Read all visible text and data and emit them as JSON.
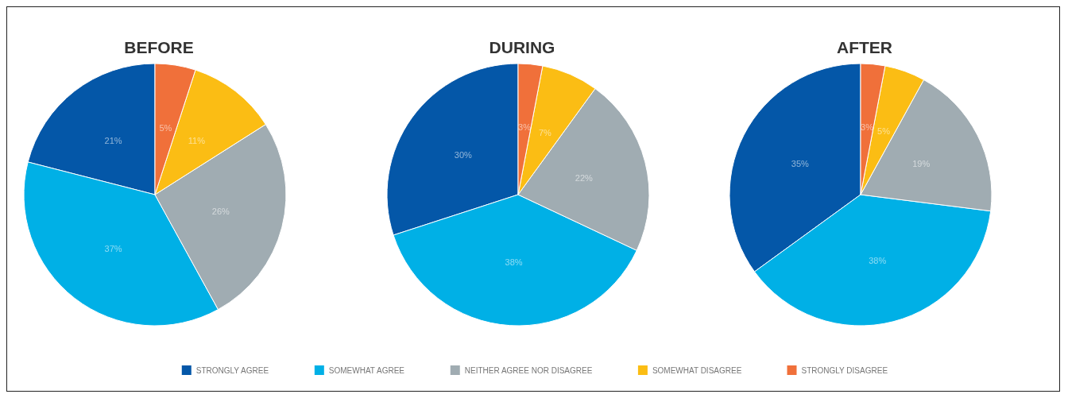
{
  "chart_data": [
    {
      "type": "pie",
      "title": "BEFORE",
      "categories": [
        null,
        null,
        null,
        null,
        null
      ],
      "values": [
        21,
        37,
        26,
        11,
        5
      ],
      "value_labels": [
        "21%",
        "37%",
        "26%",
        "11%",
        "5%"
      ],
      "colors": [
        "#0457a8",
        "#00b0e6",
        "#a0acb2",
        "#fbbd14",
        "#f0703a"
      ],
      "legend": false
    },
    {
      "type": "pie",
      "title": "DURING",
      "categories": [
        "STRONGLY AGREE",
        "SOMEWHAT AGREE",
        "NEITHER AGREE NOR DISAGREE",
        "SOMEWHAT DISAGREE",
        "STRONGLY DISAGREE"
      ],
      "values": [
        30,
        38,
        22,
        7,
        3
      ],
      "value_labels": [
        "30%",
        "38%",
        "22%",
        "7%",
        "3%"
      ],
      "colors": [
        "#0457a8",
        "#00b0e6",
        "#a0acb2",
        "#fbbd14",
        "#f0703a"
      ],
      "legend": "bottom"
    },
    {
      "type": "pie",
      "title": "AFTER",
      "categories": [
        null,
        null,
        null,
        null,
        null
      ],
      "values": [
        35,
        38,
        19,
        5,
        3
      ],
      "value_labels": [
        "35%",
        "38%",
        "19%",
        "5%",
        "3%"
      ],
      "colors": [
        "#0457a8",
        "#00b0e6",
        "#a0acb2",
        "#fbbd14",
        "#f0703a"
      ],
      "legend": false
    }
  ]
}
